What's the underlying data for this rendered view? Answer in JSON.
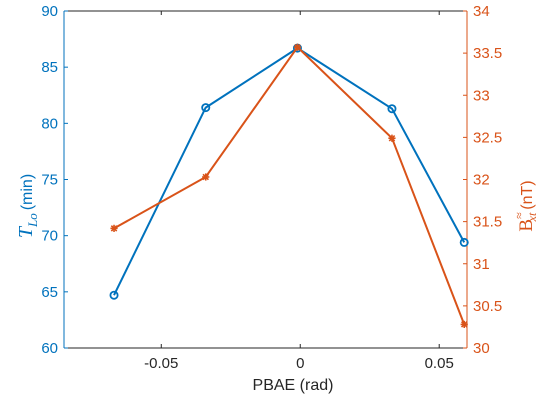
{
  "chart_data": {
    "type": "line",
    "xlabel": "PBAE (rad)",
    "xlim": [
      -0.085,
      0.06
    ],
    "x_ticks": [
      -0.05,
      0,
      0.05
    ],
    "x_tick_labels": [
      "-0.05",
      "0",
      "0.05"
    ],
    "y_left": {
      "label_symbol": "T",
      "label_subscript": "Lo",
      "label_unit": "(min)",
      "lim": [
        60,
        90
      ],
      "ticks": [
        60,
        65,
        70,
        75,
        80,
        85,
        90
      ],
      "tick_labels": [
        "60",
        "65",
        "70",
        "75",
        "80",
        "85",
        "90"
      ],
      "color": "#0072BD"
    },
    "y_right": {
      "label_symbol": "B",
      "label_subscript": "xt",
      "label_superscript": "≈",
      "label_unit": "(nT)",
      "lim": [
        30,
        34
      ],
      "ticks": [
        30,
        30.5,
        31,
        31.5,
        32,
        32.5,
        33,
        33.5,
        34
      ],
      "tick_labels": [
        "30",
        "30.5",
        "31",
        "31.5",
        "32",
        "32.5",
        "33",
        "33.5",
        "34"
      ],
      "color": "#D95319"
    },
    "series": [
      {
        "axis": "left",
        "marker": "circle",
        "color": "#0072BD",
        "x": [
          -0.067,
          -0.034,
          -0.001,
          0.033,
          0.059
        ],
        "y": [
          64.7,
          81.4,
          86.7,
          81.3,
          69.4
        ]
      },
      {
        "axis": "right",
        "marker": "asterisk",
        "color": "#D95319",
        "x": [
          -0.067,
          -0.034,
          -0.001,
          0.033,
          0.059
        ],
        "y": [
          31.42,
          32.03,
          33.57,
          32.49,
          30.28
        ]
      }
    ]
  }
}
